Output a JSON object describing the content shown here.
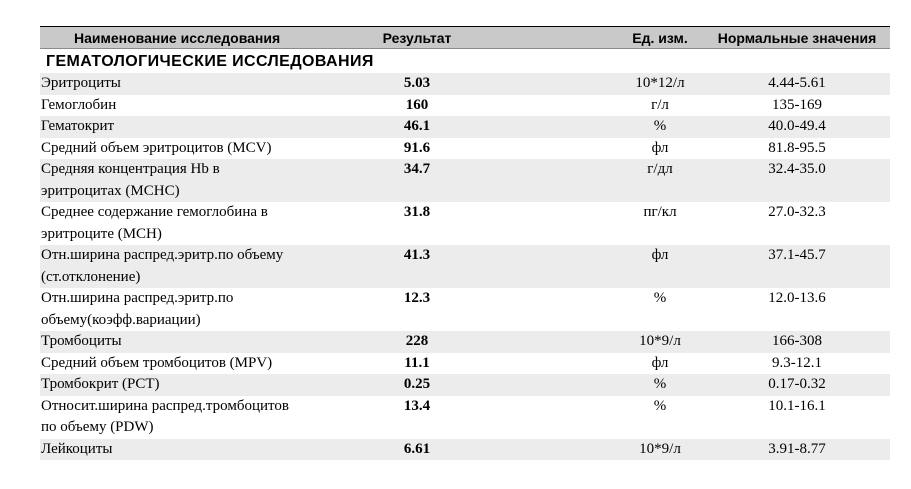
{
  "header": {
    "name": "Наименование исследования",
    "result": "Результат",
    "unit": "Ед. изм.",
    "norm": "Нормальные значения"
  },
  "section": {
    "title": "ГЕМАТОЛОГИЧЕСКИЕ ИССЛЕДОВАНИЯ"
  },
  "rows": [
    {
      "name_line1": "Эритроциты",
      "name_line2": "",
      "result": "5.03",
      "unit": "10*12/л",
      "norm": "4.44-5.61",
      "shaded": true
    },
    {
      "name_line1": "Гемоглобин",
      "name_line2": "",
      "result": "160",
      "unit": "г/л",
      "norm": "135-169",
      "shaded": false
    },
    {
      "name_line1": "Гематокрит",
      "name_line2": "",
      "result": "46.1",
      "unit": "%",
      "norm": "40.0-49.4",
      "shaded": true
    },
    {
      "name_line1": "Средний объем эритроцитов (MCV)",
      "name_line2": "",
      "result": "91.6",
      "unit": "фл",
      "norm": "81.8-95.5",
      "shaded": false
    },
    {
      "name_line1": "Средняя концентрация Hb в",
      "name_line2": "эритроцитах (MCHC)",
      "result": "34.7",
      "unit": "г/дл",
      "norm": "32.4-35.0",
      "shaded": true
    },
    {
      "name_line1": "Среднее содержание гемоглобина в",
      "name_line2": "эритроците (MCH)",
      "result": "31.8",
      "unit": "пг/кл",
      "norm": "27.0-32.3",
      "shaded": false
    },
    {
      "name_line1": "Отн.ширина распред.эритр.по объему",
      "name_line2": "(ст.отклонение)",
      "result": "41.3",
      "unit": "фл",
      "norm": "37.1-45.7",
      "shaded": true
    },
    {
      "name_line1": "Отн.ширина распред.эритр.по",
      "name_line2": "объему(коэфф.вариации)",
      "result": "12.3",
      "unit": "%",
      "norm": "12.0-13.6",
      "shaded": false
    },
    {
      "name_line1": "Тромбоциты",
      "name_line2": "",
      "result": "228",
      "unit": "10*9/л",
      "norm": "166-308",
      "shaded": true
    },
    {
      "name_line1": "Средний объем тромбоцитов (MPV)",
      "name_line2": "",
      "result": "11.1",
      "unit": "фл",
      "norm": "9.3-12.1",
      "shaded": false
    },
    {
      "name_line1": "Тромбокрит (PCT)",
      "name_line2": "",
      "result": "0.25",
      "unit": "%",
      "norm": "0.17-0.32",
      "shaded": true
    },
    {
      "name_line1": "Относит.ширина распред.тромбоцитов",
      "name_line2": "по объему (PDW)",
      "result": "13.4",
      "unit": "%",
      "norm": "10.1-16.1",
      "shaded": false
    },
    {
      "name_line1": "Лейкоциты",
      "name_line2": "",
      "result": "6.61",
      "unit": "10*9/л",
      "norm": "3.91-8.77",
      "shaded": true
    }
  ]
}
